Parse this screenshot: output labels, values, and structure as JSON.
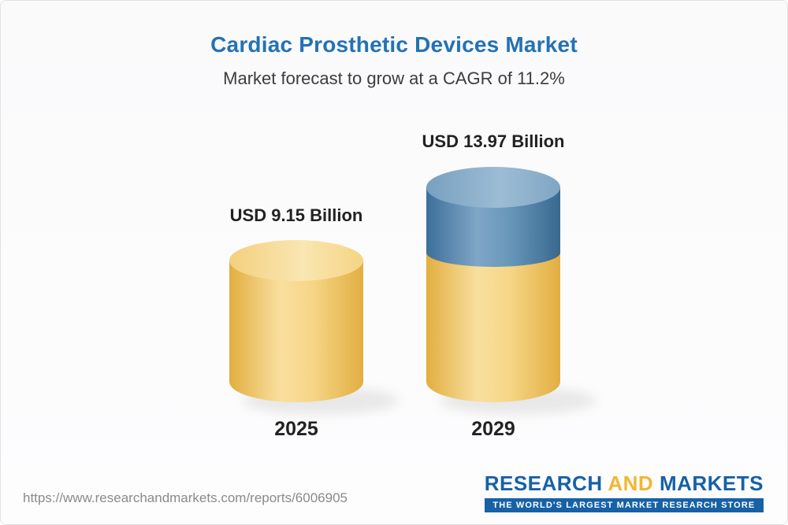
{
  "chart_data": {
    "type": "bar",
    "title": "Cardiac Prosthetic Devices Market",
    "subtitle": "Market forecast to grow at a CAGR of 11.2%",
    "cagr_percent": 11.2,
    "unit": "USD Billion",
    "categories": [
      "2025",
      "2029"
    ],
    "values": [
      9.15,
      13.97
    ],
    "value_labels": [
      "USD 9.15 Billion",
      "USD 13.97 Billion"
    ],
    "series": [
      {
        "name": "2025 market size",
        "value": 9.15,
        "color": "#f3cf7d"
      },
      {
        "name": "2029 forecast",
        "value": 13.97,
        "color": "#5b8cb2"
      }
    ],
    "legend_position": "none",
    "axes": "none",
    "style": "3d-cylinder-infographic"
  },
  "footer": {
    "report_url": "https://www.researchandmarkets.com/reports/6006905",
    "logo": {
      "part1": "RESEARCH ",
      "part2": "AND",
      "part3": " MARKETS",
      "tagline": "THE WORLD'S LARGEST MARKET RESEARCH STORE"
    }
  },
  "colors": {
    "title_blue": "#2372b5",
    "text_dark": "#222222",
    "bar_yellow": "#f3cf7d",
    "bar_blue": "#5b8cb2",
    "logo_blue": "#1761a6",
    "logo_gold": "#f2b632"
  }
}
